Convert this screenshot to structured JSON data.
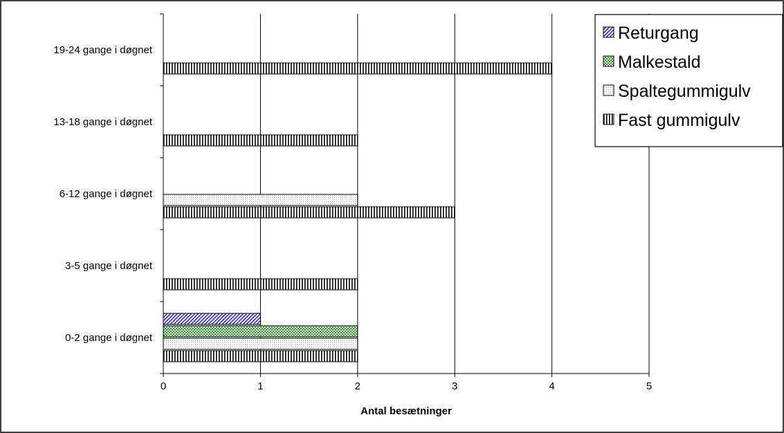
{
  "chart_data": {
    "type": "bar",
    "orientation": "horizontal",
    "categories": [
      "0-2 gange i døgnet",
      "3-5 gange i døgnet",
      "6-12 gange i døgnet",
      "13-18 gange i døgnet",
      "19-24 gange i døgnet"
    ],
    "series": [
      {
        "name": "Returgang",
        "values": [
          1,
          0,
          0,
          0,
          0
        ],
        "color": "#2a2ae0",
        "pattern": "diagonal-hatch"
      },
      {
        "name": "Malkestald",
        "values": [
          2,
          0,
          0,
          0,
          0
        ],
        "color": "#1f9a1f",
        "pattern": "checker"
      },
      {
        "name": "Spaltegummigulv",
        "values": [
          2,
          0,
          2,
          0,
          0
        ],
        "color": "#9a9a9a",
        "pattern": "dots"
      },
      {
        "name": "Fast gummigulv",
        "values": [
          2,
          2,
          3,
          2,
          4
        ],
        "color": "#000000",
        "pattern": "vertical-lines"
      }
    ],
    "xlabel": "Antal besætninger",
    "ylabel": "",
    "xlim": [
      0,
      5
    ],
    "xticks": [
      "0",
      "1",
      "2",
      "3",
      "4",
      "5"
    ],
    "grid": "vertical",
    "legend_position": "top-right"
  }
}
